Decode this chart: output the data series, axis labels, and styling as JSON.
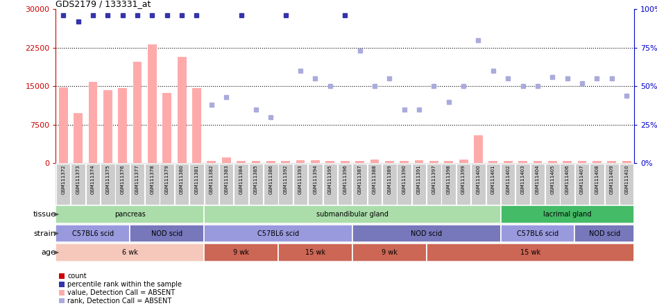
{
  "title": "GDS2179 / 133331_at",
  "samples": [
    "GSM111372",
    "GSM111373",
    "GSM111374",
    "GSM111375",
    "GSM111376",
    "GSM111377",
    "GSM111378",
    "GSM111379",
    "GSM111380",
    "GSM111381",
    "GSM111382",
    "GSM111383",
    "GSM111384",
    "GSM111385",
    "GSM111386",
    "GSM111392",
    "GSM111393",
    "GSM111394",
    "GSM111395",
    "GSM111396",
    "GSM111387",
    "GSM111388",
    "GSM111389",
    "GSM111390",
    "GSM111391",
    "GSM111397",
    "GSM111398",
    "GSM111399",
    "GSM111400",
    "GSM111401",
    "GSM111402",
    "GSM111403",
    "GSM111404",
    "GSM111405",
    "GSM111406",
    "GSM111407",
    "GSM111408",
    "GSM111409",
    "GSM111410"
  ],
  "bar_values": [
    14800,
    9800,
    15800,
    14200,
    14700,
    19800,
    23200,
    13700,
    20700,
    14700,
    400,
    1100,
    400,
    400,
    400,
    400,
    600,
    600,
    400,
    400,
    400,
    700,
    500,
    400,
    600,
    400,
    400,
    700,
    5500,
    400,
    400,
    400,
    400,
    400,
    400,
    400,
    400,
    400,
    400
  ],
  "rank_values": [
    96,
    92,
    96,
    96,
    96,
    96,
    96,
    96,
    96,
    96,
    38,
    43,
    96,
    35,
    30,
    96,
    60,
    55,
    50,
    96,
    73,
    50,
    55,
    35,
    35,
    50,
    40,
    50,
    80,
    60,
    55,
    50,
    50,
    56,
    55,
    52,
    55,
    55,
    44
  ],
  "bar_absent": [
    true,
    true,
    true,
    true,
    true,
    true,
    true,
    true,
    true,
    true,
    true,
    true,
    true,
    true,
    true,
    true,
    true,
    true,
    true,
    true,
    true,
    true,
    true,
    true,
    true,
    true,
    true,
    true,
    true,
    true,
    true,
    true,
    true,
    true,
    true,
    true,
    true,
    true,
    true
  ],
  "rank_absent": [
    false,
    false,
    false,
    false,
    false,
    false,
    false,
    false,
    false,
    false,
    true,
    true,
    false,
    true,
    true,
    false,
    true,
    true,
    true,
    false,
    true,
    true,
    true,
    true,
    true,
    true,
    true,
    true,
    true,
    true,
    true,
    true,
    true,
    true,
    true,
    true,
    true,
    true,
    true
  ],
  "ylim_left": [
    0,
    30000
  ],
  "ylim_right": [
    0,
    100
  ],
  "yticks_left": [
    0,
    7500,
    15000,
    22500,
    30000
  ],
  "yticks_right": [
    0,
    25,
    50,
    75,
    100
  ],
  "tissue_groups": [
    {
      "label": "pancreas",
      "start": 0,
      "end": 9,
      "color": "#aaddaa"
    },
    {
      "label": "submandibular gland",
      "start": 10,
      "end": 29,
      "color": "#aaddaa"
    },
    {
      "label": "lacrimal gland",
      "start": 30,
      "end": 38,
      "color": "#44bb66"
    }
  ],
  "strain_groups": [
    {
      "label": "C57BL6 scid",
      "start": 0,
      "end": 4,
      "color": "#9999dd"
    },
    {
      "label": "NOD scid",
      "start": 5,
      "end": 9,
      "color": "#7777bb"
    },
    {
      "label": "C57BL6 scid",
      "start": 10,
      "end": 19,
      "color": "#9999dd"
    },
    {
      "label": "NOD scid",
      "start": 20,
      "end": 29,
      "color": "#7777bb"
    },
    {
      "label": "C57BL6 scid",
      "start": 30,
      "end": 34,
      "color": "#9999dd"
    },
    {
      "label": "NOD scid",
      "start": 35,
      "end": 38,
      "color": "#7777bb"
    }
  ],
  "age_groups": [
    {
      "label": "6 wk",
      "start": 0,
      "end": 9,
      "color": "#f5c8bb"
    },
    {
      "label": "9 wk",
      "start": 10,
      "end": 14,
      "color": "#cc6655"
    },
    {
      "label": "15 wk",
      "start": 15,
      "end": 19,
      "color": "#cc6655"
    },
    {
      "label": "9 wk",
      "start": 20,
      "end": 24,
      "color": "#cc6655"
    },
    {
      "label": "15 wk",
      "start": 25,
      "end": 38,
      "color": "#cc6655"
    }
  ],
  "bar_color_absent": "#ffaaaa",
  "rank_color_present": "#3333aa",
  "rank_color_absent": "#aaaadd",
  "left_axis_color": "#cc0000",
  "right_axis_color": "#0000cc",
  "bg_color": "#ffffff",
  "xticklabels_bg": "#dddddd"
}
